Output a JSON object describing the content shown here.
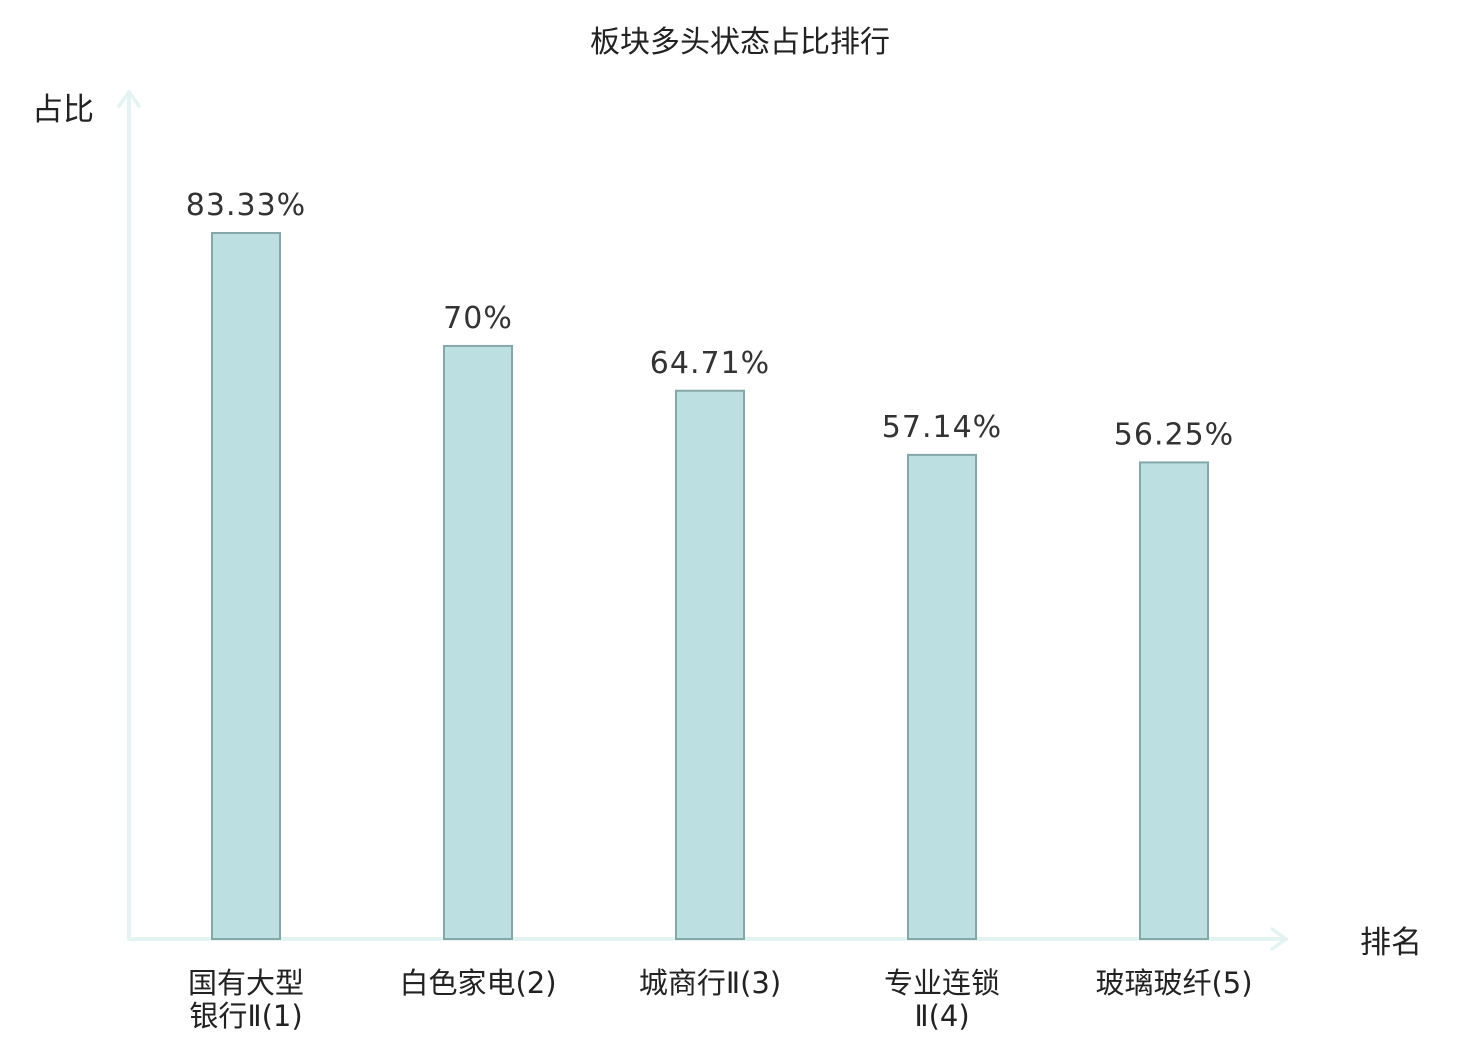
{
  "chart_data": {
    "type": "bar",
    "title": "板块多头状态占比排行",
    "ylabel": "占比",
    "xlabel": "排名",
    "ylim": [
      0,
      100
    ],
    "grid": false,
    "categories": [
      {
        "lines": [
          "国有大型",
          "银行Ⅱ(1)"
        ],
        "highlight": false
      },
      {
        "lines": [
          "白色家电(2)"
        ],
        "highlight": false
      },
      {
        "lines": [
          "城商行Ⅱ(3)"
        ],
        "highlight": true
      },
      {
        "lines": [
          "专业连锁",
          "Ⅱ(4)"
        ],
        "highlight": false
      },
      {
        "lines": [
          "玻璃玻纤(5)"
        ],
        "highlight": false
      }
    ],
    "values": [
      83.33,
      70,
      64.71,
      57.14,
      56.25
    ],
    "value_labels": [
      "83.33%",
      "70%",
      "64.71%",
      "57.14%",
      "56.25%"
    ]
  },
  "colors": {
    "bar_fill": "#bce0e2",
    "bar_stroke": "#86a7a9",
    "axis": "#e2f3f1",
    "text": "#222222",
    "value_text": "#333333",
    "highlight_text": "#e0201e",
    "background": "#ffffff"
  }
}
